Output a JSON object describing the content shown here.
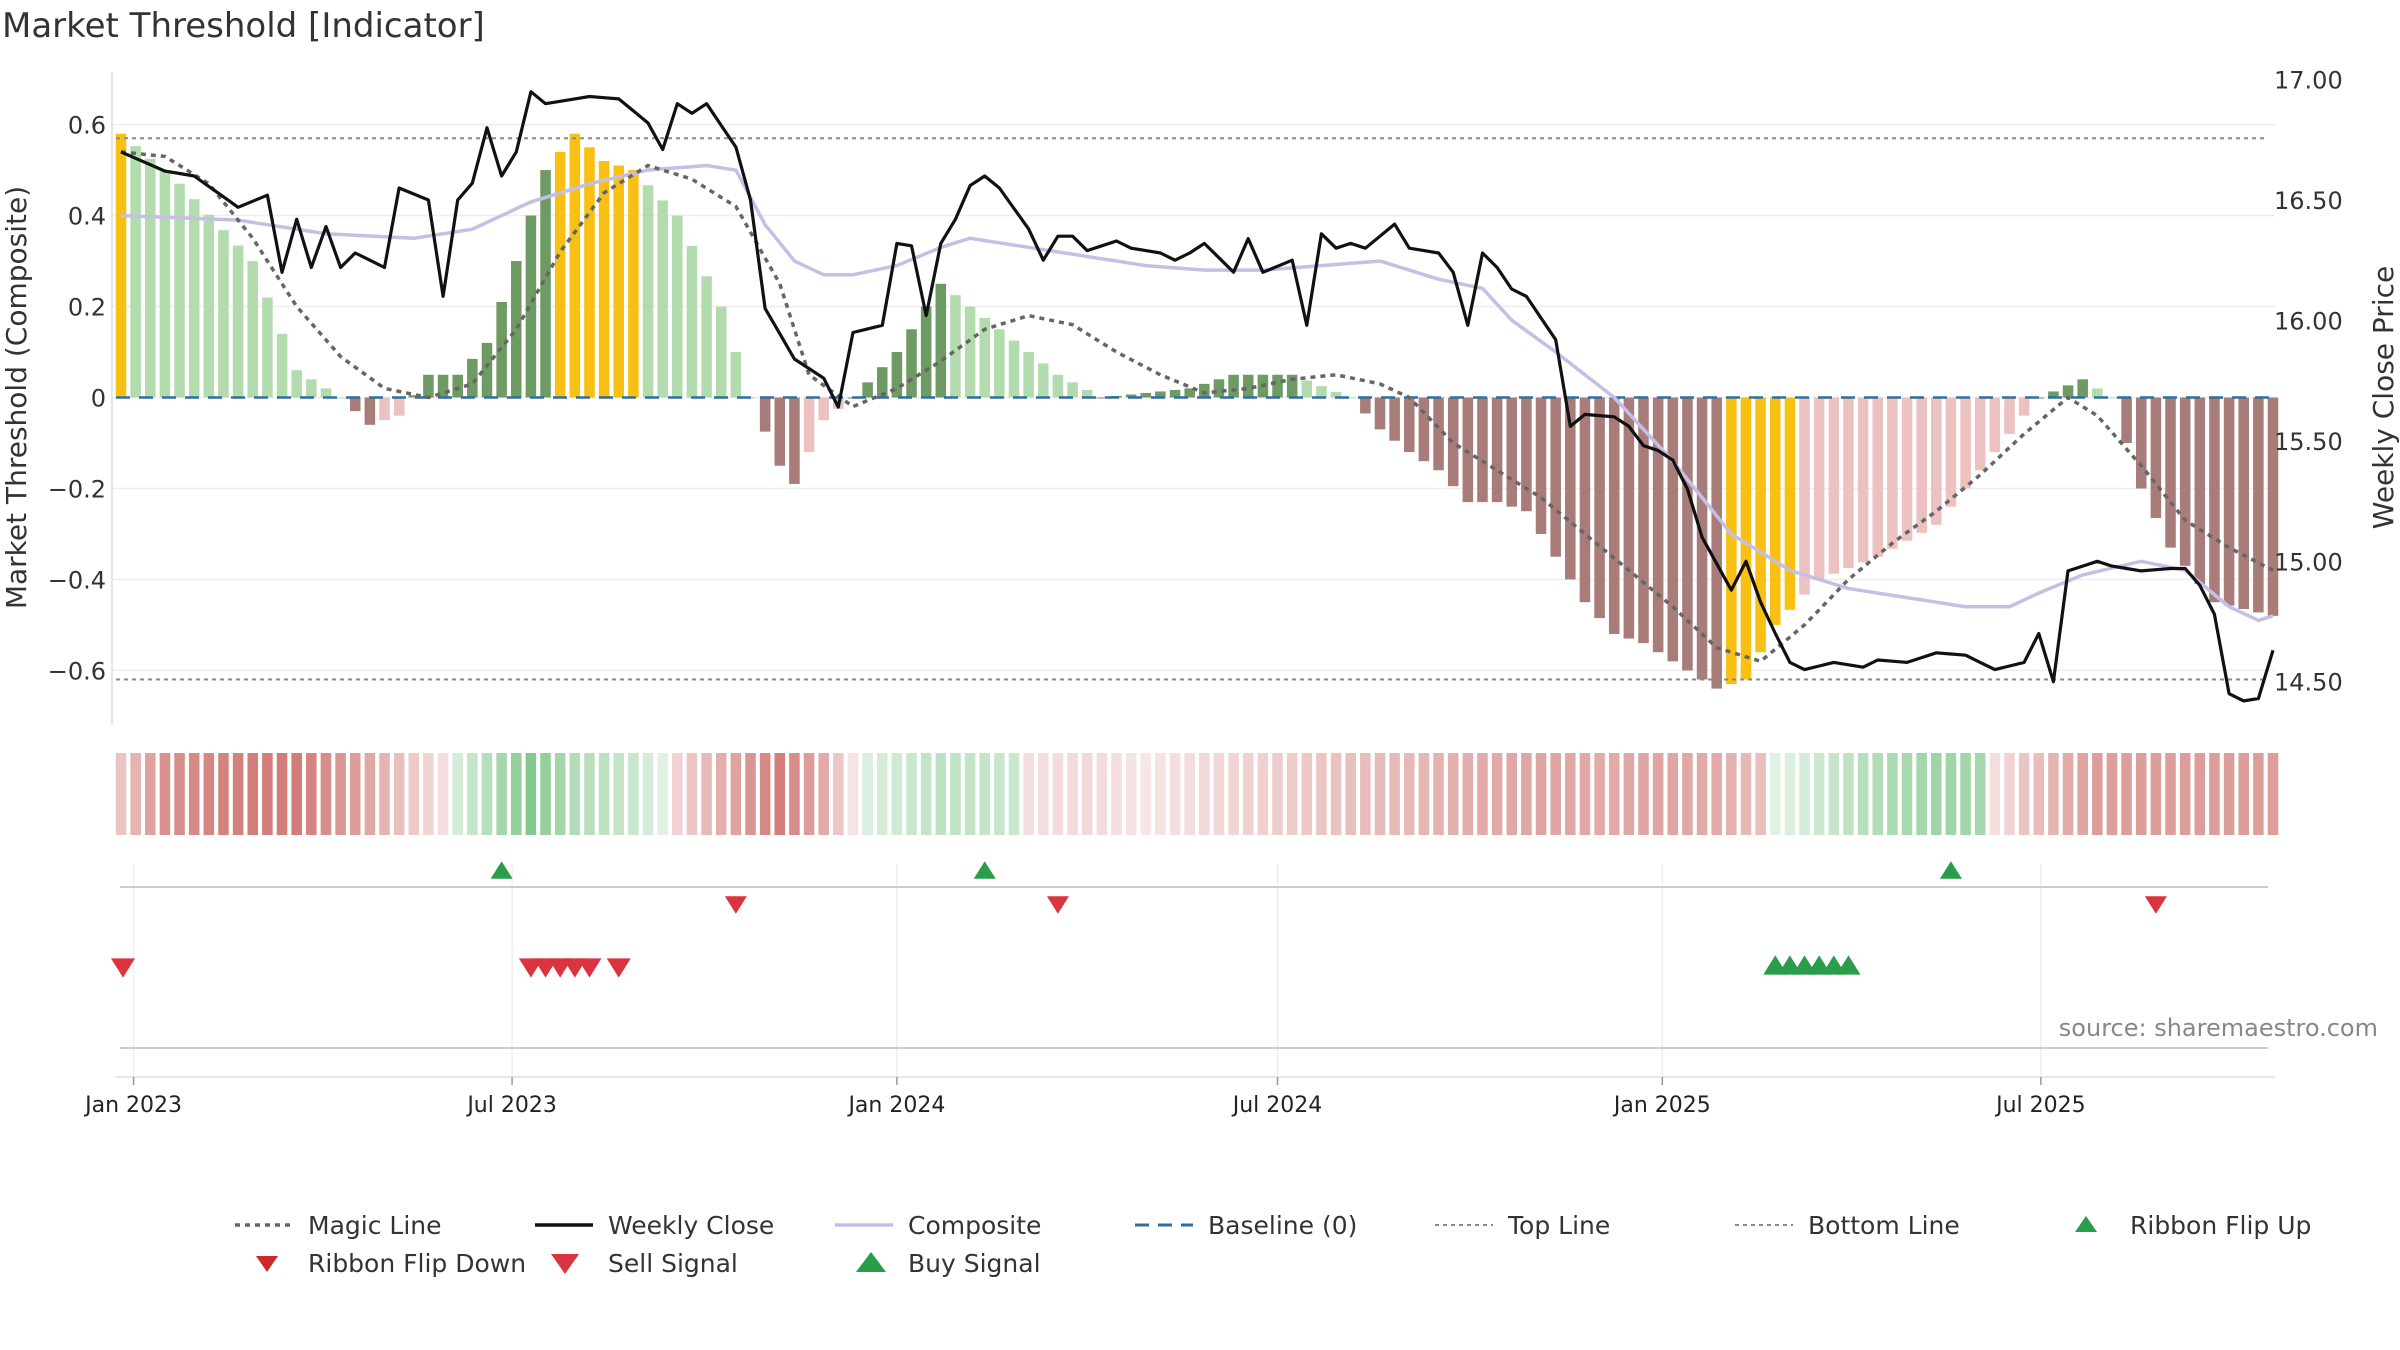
{
  "title": "Market Threshold [Indicator]",
  "source": "source: sharemaestro.com",
  "colors": {
    "composite": "#c5bfe6",
    "weekly_close": "#111111",
    "magic_line": "#666666",
    "baseline": "#2e6f9e",
    "threshold_lines": "#8a8a8a",
    "bar_gold": "#f7c013",
    "bar_green_dark": "#6e9a64",
    "bar_green_light": "#b2dcae",
    "bar_red_dark": "#a87c78",
    "bar_red_light": "#ecc2c0",
    "ribbon_green": "#6fbf7a",
    "ribbon_red": "#c96560",
    "marker_green": "#2a9d4a",
    "marker_red": "#d9343f"
  },
  "chart_data": {
    "type": "bar",
    "title": "Market Threshold [Indicator]",
    "ylabel": "Market Threshold (Composite)",
    "y2label": "Weekly Close Price",
    "ylim": [
      -0.72,
      0.72
    ],
    "y2lim": [
      14.32,
      17.04
    ],
    "yticks": [
      0.6,
      0.4,
      0.2,
      0,
      -0.2,
      -0.4,
      -0.6
    ],
    "ytick_labels": [
      "0.6",
      "0.4",
      "0.2",
      "0",
      "−0.2",
      "−0.4",
      "−0.6"
    ],
    "y2ticks": [
      17.0,
      16.5,
      16.0,
      15.5,
      15.0,
      14.5
    ],
    "y2tick_labels": [
      "17.00",
      "16.50",
      "16.00",
      "15.50",
      "15.00",
      "14.50"
    ],
    "x_start": "2022-12-26",
    "weeks": 148,
    "xticks": [
      {
        "label": "Jan 2023",
        "date": "2023-01-01"
      },
      {
        "label": "Jul 2023",
        "date": "2023-07-01"
      },
      {
        "label": "Jan 2024",
        "date": "2024-01-01"
      },
      {
        "label": "Jul 2024",
        "date": "2024-07-01"
      },
      {
        "label": "Jan 2025",
        "date": "2025-01-01"
      },
      {
        "label": "Jul 2025",
        "date": "2025-07-01"
      }
    ],
    "top_line": 0.57,
    "bottom_line": -0.62,
    "baseline": 0,
    "bars_keyframes": [
      [
        0,
        0.58
      ],
      [
        4,
        0.47
      ],
      [
        9,
        0.3
      ],
      [
        12,
        0.06
      ],
      [
        15,
        0.0
      ],
      [
        17,
        -0.06
      ],
      [
        19,
        -0.04
      ],
      [
        21,
        0.05
      ],
      [
        23,
        0.05
      ],
      [
        25,
        0.12
      ],
      [
        27,
        0.3
      ],
      [
        29,
        0.5
      ],
      [
        31,
        0.58
      ],
      [
        33,
        0.52
      ],
      [
        35,
        0.5
      ],
      [
        38,
        0.4
      ],
      [
        41,
        0.2
      ],
      [
        43,
        0.0
      ],
      [
        45,
        -0.15
      ],
      [
        46,
        -0.19
      ],
      [
        48,
        -0.05
      ],
      [
        50,
        0.0
      ],
      [
        53,
        0.1
      ],
      [
        56,
        0.25
      ],
      [
        60,
        0.15
      ],
      [
        64,
        0.05
      ],
      [
        67,
        0.0
      ],
      [
        73,
        0.02
      ],
      [
        76,
        0.05
      ],
      [
        80,
        0.05
      ],
      [
        84,
        0.0
      ],
      [
        86,
        -0.07
      ],
      [
        88,
        -0.12
      ],
      [
        90,
        -0.16
      ],
      [
        92,
        -0.23
      ],
      [
        94,
        -0.23
      ],
      [
        96,
        -0.25
      ],
      [
        98,
        -0.35
      ],
      [
        100,
        -0.45
      ],
      [
        102,
        -0.52
      ],
      [
        104,
        -0.54
      ],
      [
        106,
        -0.58
      ],
      [
        109,
        -0.64
      ],
      [
        111,
        -0.62
      ],
      [
        113,
        -0.5
      ],
      [
        116,
        -0.4
      ],
      [
        120,
        -0.35
      ],
      [
        124,
        -0.28
      ],
      [
        128,
        -0.12
      ],
      [
        131,
        0.0
      ],
      [
        134,
        0.04
      ],
      [
        136,
        0.0
      ],
      [
        138,
        -0.2
      ],
      [
        140,
        -0.33
      ],
      [
        143,
        -0.45
      ],
      [
        147,
        -0.48
      ]
    ],
    "bar_colors": {
      "gold_ranges": [
        [
          0,
          0
        ],
        [
          30,
          35
        ],
        [
          110,
          114
        ]
      ],
      "sign_threshold": 0
    },
    "weekly_close_keyframes": [
      [
        0,
        16.7
      ],
      [
        3,
        16.62
      ],
      [
        5,
        16.6
      ],
      [
        8,
        16.47
      ],
      [
        10,
        16.52
      ],
      [
        11,
        16.2
      ],
      [
        12,
        16.42
      ],
      [
        13,
        16.22
      ],
      [
        14,
        16.39
      ],
      [
        15,
        16.22
      ],
      [
        16,
        16.28
      ],
      [
        18,
        16.22
      ],
      [
        19,
        16.55
      ],
      [
        21,
        16.5
      ],
      [
        22,
        16.1
      ],
      [
        23,
        16.5
      ],
      [
        24,
        16.57
      ],
      [
        25,
        16.8
      ],
      [
        26,
        16.6
      ],
      [
        27,
        16.7
      ],
      [
        28,
        16.95
      ],
      [
        29,
        16.9
      ],
      [
        32,
        16.93
      ],
      [
        34,
        16.92
      ],
      [
        35,
        16.87
      ],
      [
        36,
        16.82
      ],
      [
        37,
        16.71
      ],
      [
        38,
        16.9
      ],
      [
        39,
        16.86
      ],
      [
        40,
        16.9
      ],
      [
        42,
        16.72
      ],
      [
        43,
        16.5
      ],
      [
        44,
        16.05
      ],
      [
        46,
        15.84
      ],
      [
        48,
        15.76
      ],
      [
        49,
        15.64
      ],
      [
        50,
        15.95
      ],
      [
        52,
        15.98
      ],
      [
        53,
        16.32
      ],
      [
        54,
        16.31
      ],
      [
        55,
        16.02
      ],
      [
        56,
        16.32
      ],
      [
        57,
        16.42
      ],
      [
        58,
        16.56
      ],
      [
        59,
        16.6
      ],
      [
        60,
        16.55
      ],
      [
        62,
        16.38
      ],
      [
        63,
        16.25
      ],
      [
        64,
        16.35
      ],
      [
        65,
        16.35
      ],
      [
        66,
        16.29
      ],
      [
        67,
        16.31
      ],
      [
        68,
        16.33
      ],
      [
        69,
        16.3
      ],
      [
        70,
        16.29
      ],
      [
        71,
        16.28
      ],
      [
        72,
        16.25
      ],
      [
        73,
        16.28
      ],
      [
        74,
        16.32
      ],
      [
        76,
        16.2
      ],
      [
        77,
        16.34
      ],
      [
        78,
        16.2
      ],
      [
        80,
        16.25
      ],
      [
        81,
        15.98
      ],
      [
        82,
        16.36
      ],
      [
        83,
        16.3
      ],
      [
        84,
        16.32
      ],
      [
        85,
        16.3
      ],
      [
        87,
        16.4
      ],
      [
        88,
        16.3
      ],
      [
        90,
        16.28
      ],
      [
        91,
        16.2
      ],
      [
        92,
        15.98
      ],
      [
        93,
        16.28
      ],
      [
        94,
        16.22
      ],
      [
        95,
        16.13
      ],
      [
        96,
        16.1
      ],
      [
        98,
        15.92
      ],
      [
        99,
        15.56
      ],
      [
        100,
        15.61
      ],
      [
        102,
        15.6
      ],
      [
        103,
        15.56
      ],
      [
        104,
        15.48
      ],
      [
        105,
        15.46
      ],
      [
        106,
        15.42
      ],
      [
        107,
        15.3
      ],
      [
        108,
        15.1
      ],
      [
        109,
        14.99
      ],
      [
        110,
        14.88
      ],
      [
        111,
        15.0
      ],
      [
        112,
        14.83
      ],
      [
        113,
        14.7
      ],
      [
        114,
        14.58
      ],
      [
        115,
        14.55
      ],
      [
        117,
        14.58
      ],
      [
        119,
        14.56
      ],
      [
        120,
        14.59
      ],
      [
        122,
        14.58
      ],
      [
        124,
        14.62
      ],
      [
        126,
        14.61
      ],
      [
        128,
        14.55
      ],
      [
        130,
        14.58
      ],
      [
        131,
        14.7
      ],
      [
        132,
        14.5
      ],
      [
        133,
        14.96
      ],
      [
        134,
        14.98
      ],
      [
        135,
        15.0
      ],
      [
        136,
        14.98
      ],
      [
        137,
        14.97
      ],
      [
        138,
        14.96
      ],
      [
        140,
        14.97
      ],
      [
        141,
        14.97
      ],
      [
        142,
        14.9
      ],
      [
        143,
        14.78
      ],
      [
        144,
        14.45
      ],
      [
        145,
        14.42
      ],
      [
        146,
        14.43
      ],
      [
        147,
        14.63
      ]
    ],
    "composite_keyframes": [
      [
        0,
        0.4
      ],
      [
        8,
        0.39
      ],
      [
        14,
        0.36
      ],
      [
        20,
        0.35
      ],
      [
        24,
        0.37
      ],
      [
        28,
        0.43
      ],
      [
        32,
        0.47
      ],
      [
        36,
        0.5
      ],
      [
        40,
        0.51
      ],
      [
        42,
        0.5
      ],
      [
        44,
        0.38
      ],
      [
        46,
        0.3
      ],
      [
        48,
        0.27
      ],
      [
        50,
        0.27
      ],
      [
        53,
        0.29
      ],
      [
        56,
        0.33
      ],
      [
        58,
        0.35
      ],
      [
        62,
        0.33
      ],
      [
        66,
        0.31
      ],
      [
        70,
        0.29
      ],
      [
        74,
        0.28
      ],
      [
        78,
        0.28
      ],
      [
        82,
        0.29
      ],
      [
        86,
        0.3
      ],
      [
        90,
        0.26
      ],
      [
        93,
        0.24
      ],
      [
        95,
        0.17
      ],
      [
        98,
        0.1
      ],
      [
        102,
        0.0
      ],
      [
        106,
        -0.14
      ],
      [
        110,
        -0.3
      ],
      [
        114,
        -0.38
      ],
      [
        118,
        -0.42
      ],
      [
        122,
        -0.44
      ],
      [
        126,
        -0.46
      ],
      [
        129,
        -0.46
      ],
      [
        131,
        -0.43
      ],
      [
        134,
        -0.39
      ],
      [
        138,
        -0.36
      ],
      [
        141,
        -0.38
      ],
      [
        144,
        -0.46
      ],
      [
        146,
        -0.49
      ],
      [
        147,
        -0.48
      ]
    ],
    "magic_line_keyframes": [
      [
        0,
        0.54
      ],
      [
        3,
        0.53
      ],
      [
        6,
        0.47
      ],
      [
        9,
        0.35
      ],
      [
        12,
        0.2
      ],
      [
        15,
        0.09
      ],
      [
        18,
        0.02
      ],
      [
        21,
        0.0
      ],
      [
        24,
        0.03
      ],
      [
        27,
        0.15
      ],
      [
        30,
        0.32
      ],
      [
        33,
        0.45
      ],
      [
        36,
        0.51
      ],
      [
        39,
        0.48
      ],
      [
        42,
        0.42
      ],
      [
        45,
        0.25
      ],
      [
        47,
        0.05
      ],
      [
        50,
        -0.02
      ],
      [
        53,
        0.02
      ],
      [
        56,
        0.08
      ],
      [
        59,
        0.15
      ],
      [
        62,
        0.18
      ],
      [
        65,
        0.16
      ],
      [
        68,
        0.1
      ],
      [
        71,
        0.05
      ],
      [
        74,
        0.01
      ],
      [
        77,
        0.02
      ],
      [
        80,
        0.04
      ],
      [
        83,
        0.05
      ],
      [
        86,
        0.03
      ],
      [
        88,
        0.0
      ],
      [
        91,
        -0.1
      ],
      [
        94,
        -0.16
      ],
      [
        97,
        -0.22
      ],
      [
        100,
        -0.3
      ],
      [
        103,
        -0.38
      ],
      [
        106,
        -0.46
      ],
      [
        109,
        -0.55
      ],
      [
        112,
        -0.58
      ],
      [
        115,
        -0.5
      ],
      [
        118,
        -0.4
      ],
      [
        121,
        -0.32
      ],
      [
        124,
        -0.25
      ],
      [
        127,
        -0.17
      ],
      [
        130,
        -0.08
      ],
      [
        133,
        0.0
      ],
      [
        135,
        -0.04
      ],
      [
        138,
        -0.15
      ],
      [
        141,
        -0.27
      ],
      [
        144,
        -0.33
      ],
      [
        147,
        -0.38
      ]
    ],
    "ribbon_keyframes": [
      [
        0,
        -0.3
      ],
      [
        3,
        -0.7
      ],
      [
        9,
        -0.85
      ],
      [
        12,
        -0.85
      ],
      [
        16,
        -0.6
      ],
      [
        19,
        -0.35
      ],
      [
        22,
        -0.1
      ],
      [
        23,
        0.2
      ],
      [
        28,
        0.85
      ],
      [
        31,
        0.5
      ],
      [
        35,
        0.3
      ],
      [
        37,
        0.1
      ],
      [
        38,
        -0.2
      ],
      [
        45,
        -0.85
      ],
      [
        48,
        -0.5
      ],
      [
        51,
        0.15
      ],
      [
        56,
        0.4
      ],
      [
        61,
        0.3
      ],
      [
        62,
        -0.1
      ],
      [
        66,
        -0.15
      ],
      [
        70,
        -0.05
      ],
      [
        74,
        -0.15
      ],
      [
        80,
        -0.25
      ],
      [
        84,
        -0.35
      ],
      [
        88,
        -0.4
      ],
      [
        93,
        -0.5
      ],
      [
        97,
        -0.55
      ],
      [
        101,
        -0.5
      ],
      [
        105,
        -0.55
      ],
      [
        109,
        -0.5
      ],
      [
        112,
        -0.35
      ],
      [
        113,
        0.1
      ],
      [
        120,
        0.5
      ],
      [
        124,
        0.65
      ],
      [
        127,
        0.6
      ],
      [
        128,
        -0.1
      ],
      [
        130,
        -0.3
      ],
      [
        133,
        -0.5
      ],
      [
        135,
        -0.6
      ]
    ],
    "ribbon_flip_up_weeks": [
      26,
      59,
      125
    ],
    "ribbon_flip_down_weeks": [
      42,
      64,
      139
    ],
    "sell_signal_weeks": [
      -1,
      28,
      29,
      30,
      31,
      32,
      34
    ],
    "buy_signal_weeks": [
      113,
      114,
      115,
      116,
      117,
      118
    ],
    "legend": [
      {
        "label": "Magic Line",
        "symbol": "dotted"
      },
      {
        "label": "Weekly Close",
        "symbol": "solid"
      },
      {
        "label": "Composite",
        "symbol": "composite"
      },
      {
        "label": "Baseline (0)",
        "symbol": "dashed"
      },
      {
        "label": "Top Line",
        "symbol": "thin-dashed"
      },
      {
        "label": "Bottom Line",
        "symbol": "thin-dashed"
      },
      {
        "label": "Ribbon Flip Up",
        "symbol": "triangle-up"
      },
      {
        "label": "Ribbon Flip Down",
        "symbol": "triangle-down-dark"
      },
      {
        "label": "Sell Signal",
        "symbol": "triangle-down"
      },
      {
        "label": "Buy Signal",
        "symbol": "triangle-up-big"
      }
    ],
    "legend_placement": "bottom"
  }
}
